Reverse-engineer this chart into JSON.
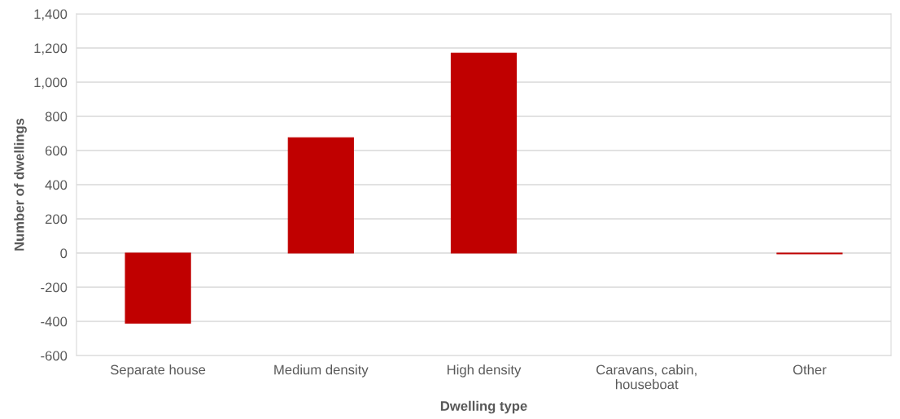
{
  "chart_data": {
    "type": "bar",
    "xlabel": "Dwelling type",
    "ylabel": "Number of dwellings",
    "categories": [
      "Separate house",
      "Medium density",
      "High density",
      "Caravans, cabin,\nhouseboat",
      "Other"
    ],
    "values": [
      -410,
      675,
      1170,
      null,
      -5
    ],
    "color": "#c00000",
    "ylim": [
      -600,
      1400
    ],
    "yticks": [
      {
        "value": -600,
        "label": "-600"
      },
      {
        "value": -400,
        "label": "-400"
      },
      {
        "value": -200,
        "label": "-200"
      },
      0,
      200,
      400,
      600,
      800,
      {
        "value": 1000,
        "label": "1,000"
      },
      {
        "value": 1200,
        "label": "1,200"
      },
      {
        "value": 1400,
        "label": "1,400"
      }
    ],
    "grid": "y"
  }
}
